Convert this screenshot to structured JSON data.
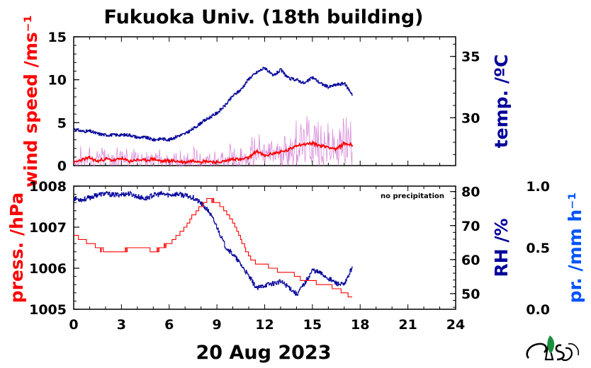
{
  "title": "Fukuoka Univ. (18th building)",
  "date_label": "20 Aug 2023",
  "colors": {
    "wind": "#ff0000",
    "wind_raw": "#cc66cc",
    "temp": "#000099",
    "press": "#ff0000",
    "rh": "#000099",
    "precip": "#0055ff",
    "logo_leaf": "#1a8f3a"
  },
  "chart_data": [
    {
      "type": "line",
      "panel": "top",
      "x_ticks": [
        "0",
        "3",
        "6",
        "9",
        "12",
        "15",
        "18",
        "21",
        "24"
      ],
      "xlim": [
        0,
        24
      ],
      "left_axis": {
        "label": "wind speed /ms⁻¹",
        "ticks": [
          "0",
          "5",
          "10",
          "15"
        ],
        "ylim": [
          0,
          15
        ]
      },
      "right_axis": {
        "label": "temp. /ºC",
        "ticks": [
          "30",
          "35"
        ],
        "ylim": [
          26.1,
          36.6
        ]
      },
      "series": [
        {
          "name": "wind speed (mean)",
          "axis": "left",
          "x": [
            0,
            0.5,
            1,
            1.5,
            2,
            2.5,
            3,
            3.5,
            4,
            4.5,
            5,
            5.5,
            6,
            6.5,
            7,
            7.5,
            8,
            8.5,
            9,
            9.5,
            10,
            10.5,
            11,
            11.5,
            12,
            12.5,
            13,
            13.5,
            14,
            14.5,
            15,
            15.5,
            16,
            16.5,
            17,
            17.5
          ],
          "y": [
            0.3,
            0.7,
            0.9,
            0.5,
            0.8,
            0.6,
            0.8,
            0.5,
            0.7,
            0.6,
            0.8,
            0.5,
            0.6,
            0.5,
            0.4,
            0.6,
            0.5,
            0.5,
            0.4,
            0.5,
            0.8,
            0.7,
            0.9,
            1.7,
            1.1,
            1.4,
            1.6,
            1.8,
            2.4,
            2.5,
            2.6,
            2.3,
            2.2,
            1.9,
            2.6,
            2.4
          ]
        },
        {
          "name": "temperature",
          "axis": "right",
          "x": [
            0,
            0.5,
            1,
            1.5,
            2,
            2.5,
            3,
            3.5,
            4,
            4.5,
            5,
            5.5,
            6,
            6.5,
            7,
            7.5,
            8,
            8.5,
            9,
            9.5,
            10,
            10.5,
            11,
            11.5,
            12,
            12.5,
            13,
            13.5,
            14,
            14.5,
            15,
            15.5,
            16,
            16.5,
            17,
            17.5
          ],
          "y": [
            29.1,
            28.9,
            28.9,
            28.7,
            28.6,
            28.6,
            28.6,
            28.6,
            28.4,
            28.4,
            28.2,
            28.3,
            28.2,
            28.5,
            28.7,
            29.1,
            29.6,
            30.0,
            30.4,
            31.0,
            31.8,
            32.3,
            33.2,
            33.7,
            34.1,
            33.4,
            33.9,
            33.2,
            33.1,
            32.8,
            33.3,
            32.8,
            32.5,
            32.7,
            32.8,
            31.9
          ]
        }
      ]
    },
    {
      "type": "line",
      "panel": "bottom",
      "annotation": "no precipitation",
      "x_ticks": [
        "0",
        "3",
        "6",
        "9",
        "12",
        "15",
        "18",
        "21",
        "24"
      ],
      "xlim": [
        0,
        24
      ],
      "left_axis": {
        "label": "press. /hPa",
        "ticks": [
          "1005",
          "1006",
          "1007",
          "1008"
        ],
        "ylim": [
          1005,
          1008
        ]
      },
      "right_axis": {
        "label": "RH /%",
        "ticks": [
          "50",
          "60",
          "70",
          "80"
        ],
        "ylim": [
          45.4,
          81.6
        ]
      },
      "precip_axis": {
        "label": "pr. /mm h⁻¹",
        "ticks": [
          "0.0",
          "0.5",
          "1.0"
        ],
        "ylim": [
          0,
          1
        ]
      },
      "series": [
        {
          "name": "pressure",
          "axis": "left",
          "x": [
            0,
            0.5,
            1,
            1.5,
            2,
            2.5,
            3,
            3.5,
            4,
            4.5,
            5,
            5.5,
            6,
            6.5,
            7,
            7.5,
            8,
            8.5,
            9,
            9.5,
            10,
            10.5,
            11,
            11.5,
            12,
            12.5,
            13,
            13.5,
            14,
            14.5,
            15,
            15.5,
            16,
            16.5,
            17,
            17.5
          ],
          "y": [
            1006.8,
            1006.7,
            1006.6,
            1006.5,
            1006.4,
            1006.4,
            1006.4,
            1006.5,
            1006.5,
            1006.5,
            1006.4,
            1006.5,
            1006.6,
            1006.8,
            1007.0,
            1007.3,
            1007.5,
            1007.7,
            1007.6,
            1007.4,
            1007.1,
            1006.7,
            1006.3,
            1006.1,
            1006.1,
            1006.0,
            1005.9,
            1005.9,
            1005.8,
            1005.7,
            1005.7,
            1005.6,
            1005.6,
            1005.5,
            1005.4,
            1005.3
          ]
        },
        {
          "name": "relative humidity",
          "axis": "right",
          "x": [
            0,
            0.5,
            1,
            1.5,
            2,
            2.5,
            3,
            3.5,
            4,
            4.5,
            5,
            5.5,
            6,
            6.5,
            7,
            7.5,
            8,
            8.5,
            9,
            9.5,
            10,
            10.5,
            11,
            11.5,
            12,
            12.5,
            13,
            13.5,
            14,
            14.5,
            15,
            15.5,
            16,
            16.5,
            17,
            17.5
          ],
          "y": [
            78.0,
            77.6,
            78.2,
            79.1,
            79.4,
            79.0,
            79.2,
            79.4,
            78.5,
            77.9,
            79.0,
            79.3,
            79.0,
            79.3,
            78.8,
            78.2,
            76.5,
            74.0,
            69.5,
            64.0,
            61.5,
            58.5,
            55.0,
            51.5,
            52.5,
            53.0,
            53.5,
            52.0,
            49.8,
            53.0,
            57.0,
            56.0,
            54.5,
            53.0,
            52.5,
            58.0
          ]
        }
      ]
    }
  ]
}
